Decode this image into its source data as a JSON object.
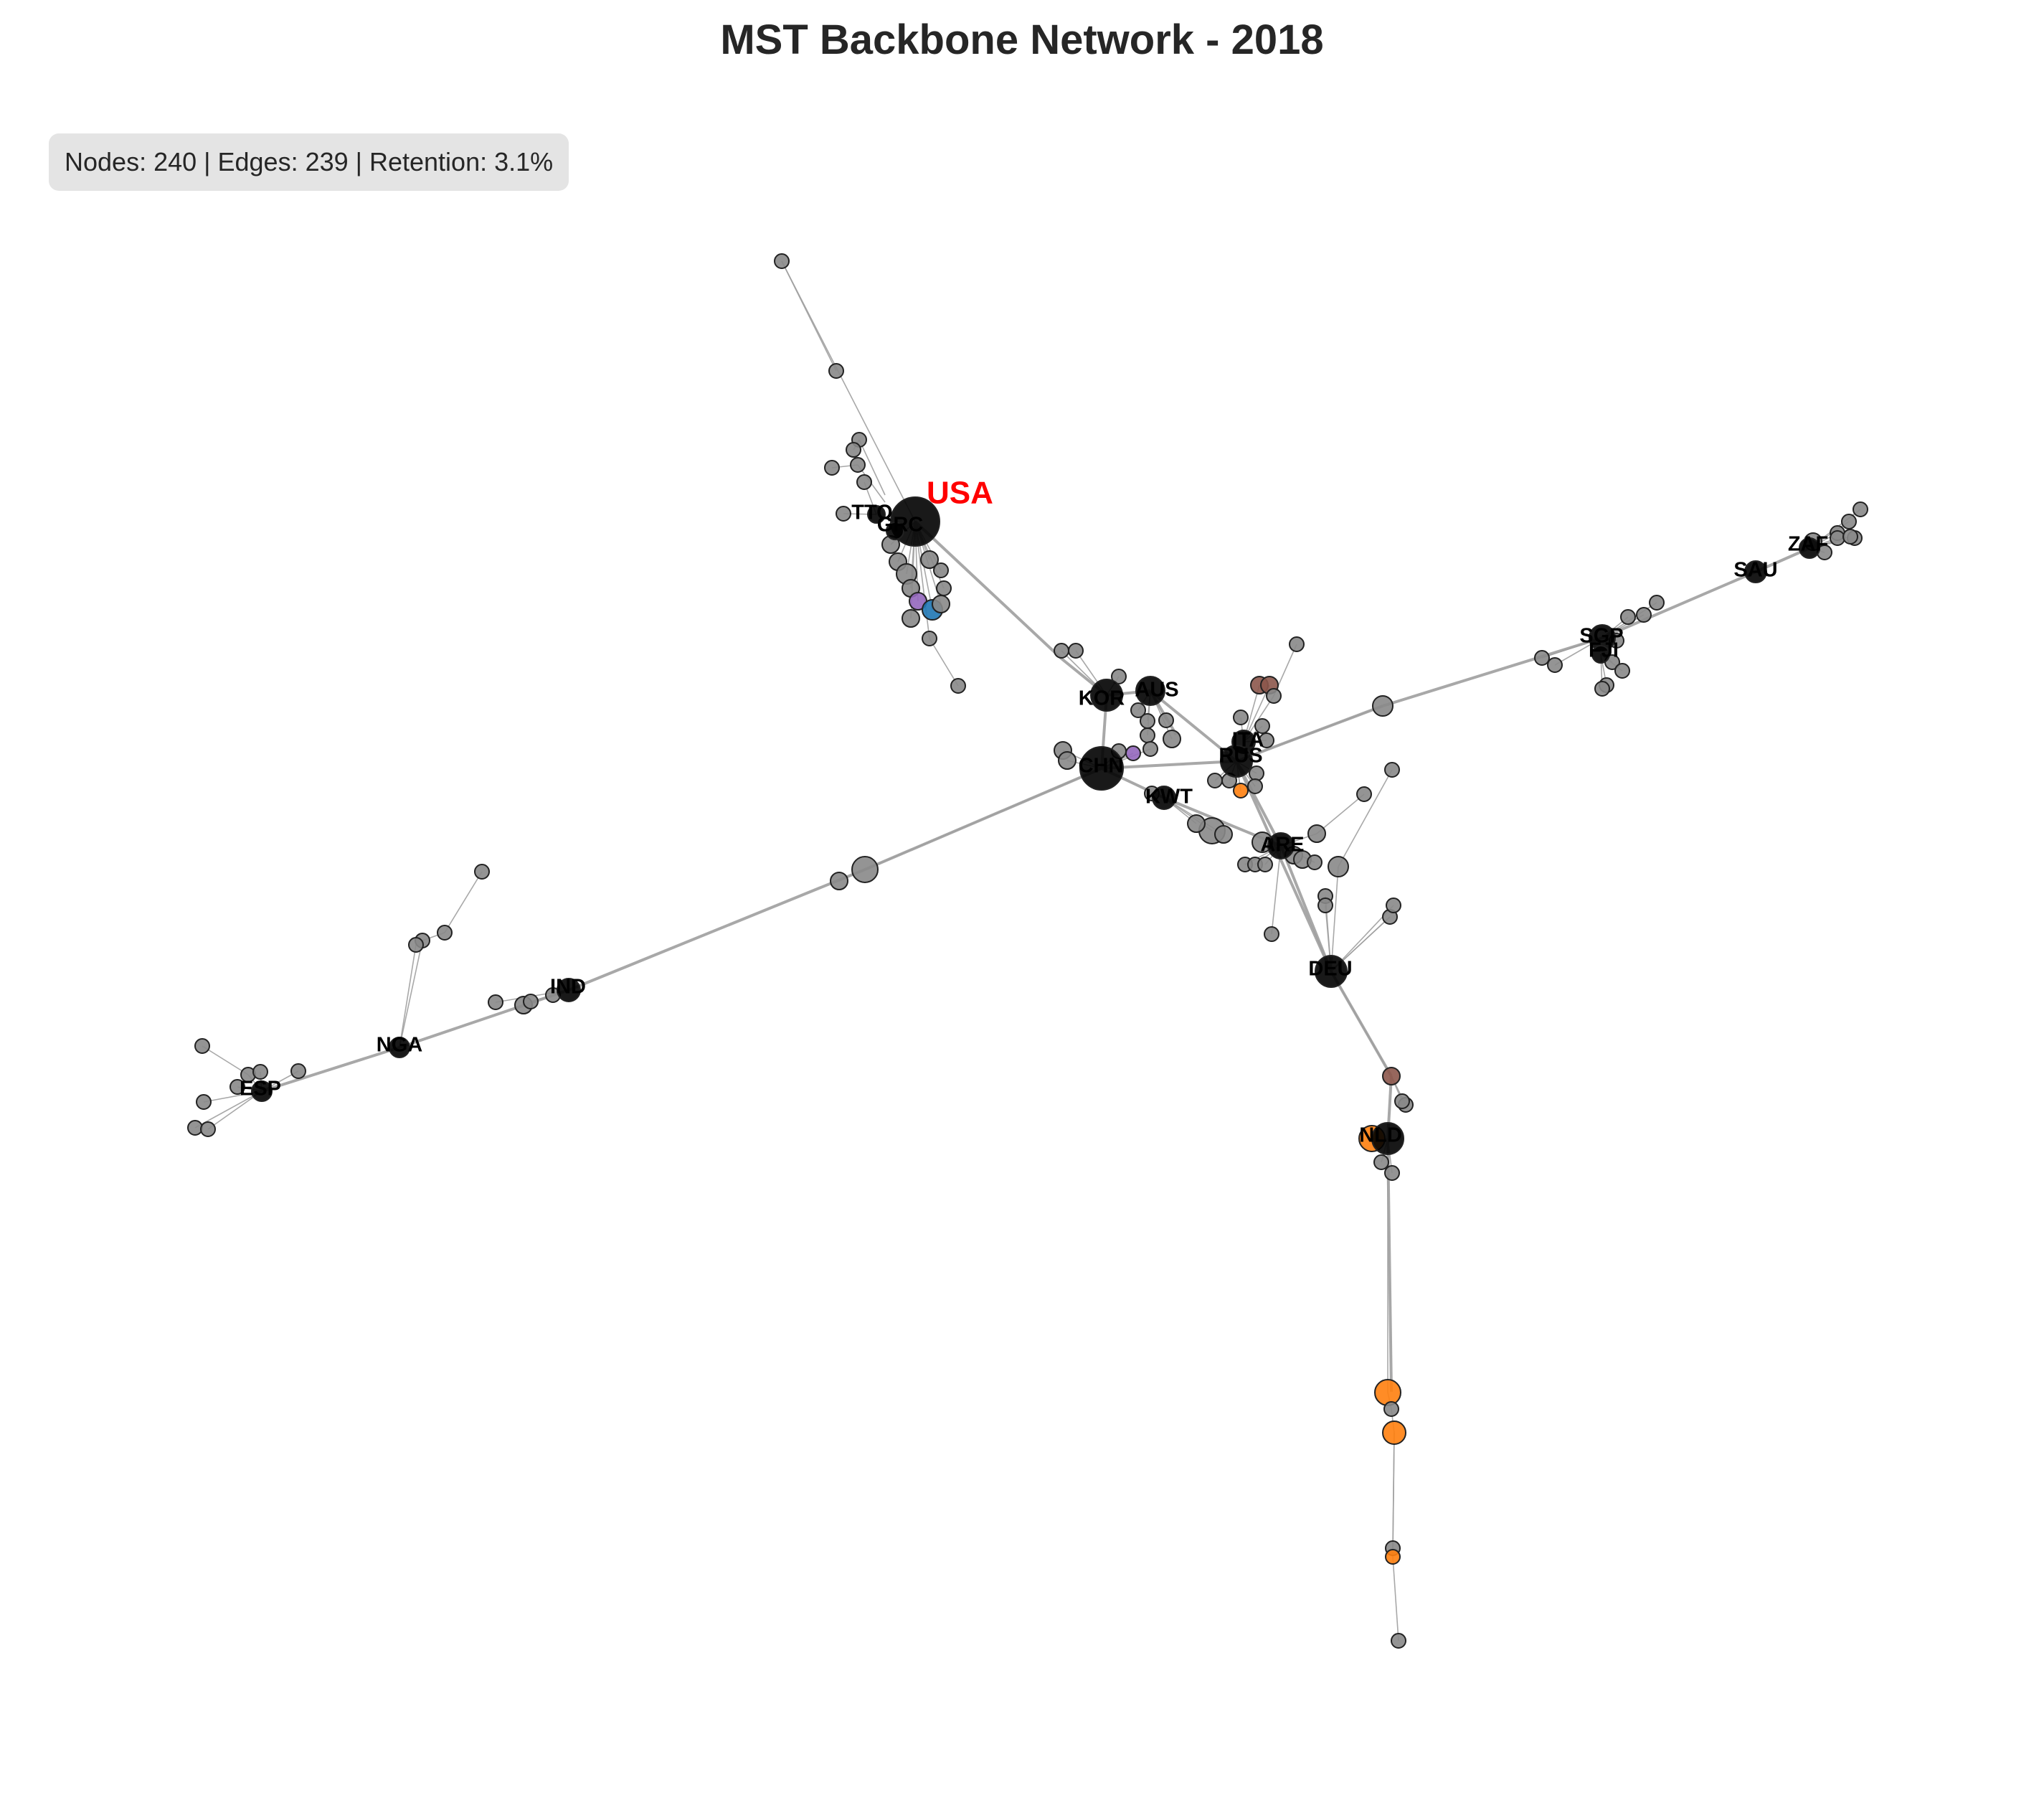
{
  "title": "MST Backbone Network - 2018",
  "stats_text": "Nodes: 240 | Edges: 239 | Retention: 3.1%",
  "highlight": {
    "label": "USA",
    "color": "#ff0000"
  },
  "colors": {
    "edge": "#9e9e9e",
    "node_default": "#888888",
    "node_stroke": "#222222",
    "red": "#d62728",
    "green": "#2ca02c",
    "pink": "#e377c2",
    "orange": "#ff7f0e",
    "brown": "#8c564b",
    "blue": "#1f77b4",
    "purple": "#9467bd",
    "usa": "#ee1111"
  },
  "country_labels": [
    "USA",
    "TTO",
    "GRC",
    "KOR",
    "AUS",
    "CHN",
    "ITA",
    "RUS",
    "KWT",
    "ARE",
    "DEU",
    "NLD",
    "SGP",
    "FJI",
    "SAU",
    "ZAF",
    "IND",
    "NGA",
    "ESP"
  ]
}
